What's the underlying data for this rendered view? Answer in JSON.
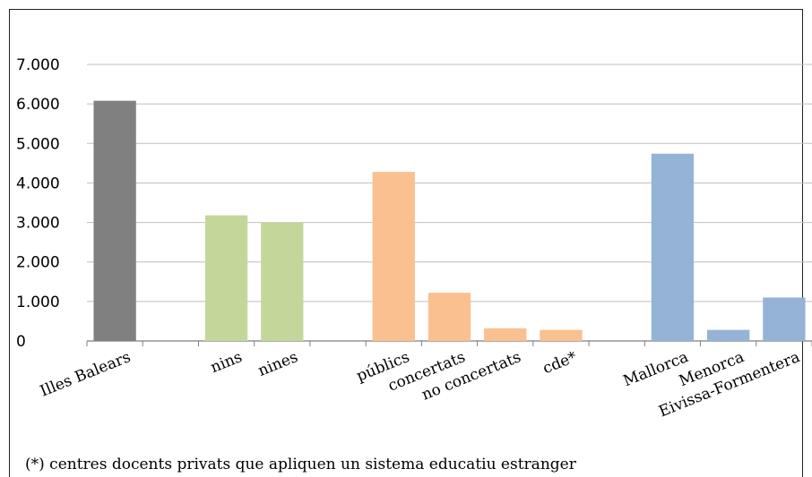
{
  "chart_data": {
    "type": "bar",
    "categories": [
      "Illes Balears",
      "",
      "nins",
      "nines",
      "",
      "públics",
      "concertats",
      "no concertats",
      "cde*",
      "",
      "Mallorca",
      "Menorca",
      "Eivissa-Formentera"
    ],
    "values": [
      6080,
      null,
      3180,
      3000,
      null,
      4280,
      1220,
      320,
      280,
      null,
      4740,
      280,
      1100
    ],
    "colors": [
      "#808080",
      null,
      "#c4d79b",
      "#c4d79b",
      null,
      "#fac090",
      "#fac090",
      "#fac090",
      "#fac090",
      null,
      "#95b3d7",
      "#95b3d7",
      "#95b3d7"
    ],
    "yticks": [
      "0",
      "1.000",
      "2.000",
      "3.000",
      "4.000",
      "5.000",
      "6.000",
      "7.000"
    ],
    "ylim": [
      0,
      8000
    ],
    "grid": true,
    "legend": "none",
    "title": "",
    "xlabel": "",
    "ylabel": ""
  },
  "footnote": "(*) centres docents privats que apliquen un sistema educatiu estranger"
}
